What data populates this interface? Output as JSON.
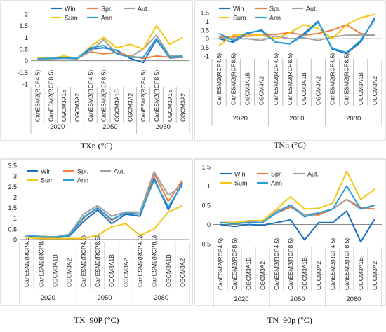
{
  "colors": {
    "Win": "#1f6fbf",
    "Spr.": "#f07b3f",
    "Aut.": "#a0a0a0",
    "Sum": "#f5c518",
    "Ann": "#2a9fd6"
  },
  "chart_data": [
    {
      "type": "line",
      "caption": "TXn (°C)",
      "yticks": [
        "2",
        "1.5",
        "1",
        "0.5",
        "0",
        "-0.5",
        "-1"
      ],
      "ylim": [
        -1,
        2
      ],
      "categories": [
        "CanESM2(RCP4.5)",
        "CanESM2(RCP8.5)",
        "CGCM3A1B",
        "CGCM3A2",
        "CanESM2(RCP4.5)",
        "CanESM2(RCP8.5)",
        "CGCM3A1B",
        "CGCM3A2",
        "CanESM2(RCP4.5)",
        "CanESM2(RCP8.5)",
        "CGCM3A1B",
        "CGCM3A2"
      ],
      "groups": [
        "2020",
        "2050",
        "2080"
      ],
      "legend": [
        [
          "Win",
          "Spr.",
          "Aut."
        ],
        [
          "Sum",
          "Ann"
        ]
      ],
      "series": [
        {
          "name": "Win",
          "values": [
            0.05,
            0.08,
            0.12,
            0.08,
            0.5,
            0.55,
            0.45,
            0.1,
            -0.08,
            0.9,
            0.12,
            0.15
          ]
        },
        {
          "name": "Spr.",
          "values": [
            0.1,
            0.1,
            0.15,
            0.1,
            0.38,
            0.3,
            0.35,
            0.2,
            0.1,
            0.2,
            0.15,
            0.15
          ]
        },
        {
          "name": "Aut.",
          "values": [
            0.08,
            0.08,
            0.1,
            0.08,
            0.4,
            0.9,
            0.3,
            0.15,
            0.5,
            1.1,
            0.2,
            0.2
          ]
        },
        {
          "name": "Sum",
          "values": [
            0.15,
            0.1,
            0.2,
            0.1,
            0.6,
            1.0,
            0.55,
            0.7,
            0.5,
            1.5,
            0.7,
            1.0
          ]
        },
        {
          "name": "Ann",
          "values": [
            0.08,
            0.1,
            0.12,
            0.1,
            0.55,
            0.65,
            0.3,
            0.15,
            0.15,
            0.95,
            0.15,
            0.2
          ]
        }
      ]
    },
    {
      "type": "line",
      "caption": "TNn (°C)",
      "yticks": [
        "1.5",
        "1",
        "0.5",
        "0",
        "-0.5",
        "-1"
      ],
      "ylim": [
        -1,
        1.5
      ],
      "categories": [
        "CanESM2(RCP4.5)",
        "CanESM2(RCP8.5)",
        "CGCM3A1B",
        "CGCM3A2",
        "CanESM2(RCP4.5)",
        "CanESM2(RCP8.5)",
        "CGCM3A1B",
        "CGCM3A2",
        "CanESM2(RCP4.5)",
        "CanESM2(RCP8.5)",
        "CGCM3A1B",
        "CGCM3A2"
      ],
      "groups": [
        "2020",
        "2050",
        "2080"
      ],
      "legend": [
        [
          "Win",
          "Spr.",
          "Aut."
        ],
        [
          "Sum",
          "Ann"
        ]
      ],
      "series": [
        {
          "name": "Win",
          "values": [
            0.0,
            -0.2,
            0.3,
            0.5,
            -0.2,
            -0.3,
            0.3,
            1.0,
            -0.6,
            -0.85,
            -0.2,
            1.2
          ]
        },
        {
          "name": "Spr.",
          "values": [
            0.1,
            0.1,
            0.15,
            0.2,
            0.25,
            0.35,
            0.2,
            0.3,
            0.5,
            0.8,
            0.3,
            0.2
          ]
        },
        {
          "name": "Aut.",
          "values": [
            0.05,
            0.0,
            0.0,
            -0.1,
            0.15,
            0.0,
            0.05,
            -0.1,
            0.1,
            0.2,
            0.2,
            0.2
          ]
        },
        {
          "name": "Sum",
          "values": [
            -0.4,
            0.2,
            0.25,
            0.2,
            0.0,
            0.35,
            0.8,
            0.6,
            0.0,
            0.8,
            1.2,
            1.4
          ]
        },
        {
          "name": "Ann",
          "values": [
            0.3,
            -0.1,
            0.35,
            0.45,
            -0.2,
            -0.3,
            0.2,
            0.95,
            -0.55,
            -0.8,
            -0.1,
            1.1
          ]
        }
      ]
    },
    {
      "type": "line",
      "caption": "TX_90P (°C)",
      "yticks": [
        "3.5",
        "3",
        "2.5",
        "2",
        "1.5",
        "1",
        "0.5",
        "0"
      ],
      "ylim": [
        0,
        3.5
      ],
      "categories": [
        "CanESM2(RCP4.5)",
        "CanESM2(RCP8.5)",
        "CGCM3A1B",
        "CGCM3A2",
        "CanESM2(RCP4.5)",
        "CanESM2(RCP8.5)",
        "CGCM3A1B",
        "CGCM3A2",
        "CanESM2(RCP4.5)",
        "CanESM2(RCP8.5)",
        "CGCM3A1B",
        "CGCM3A2"
      ],
      "groups": [
        "2020",
        "2050",
        "2080"
      ],
      "legend": [
        [
          "Win",
          "Spr.",
          "Aut."
        ],
        [
          "Sum",
          "Ann"
        ]
      ],
      "series": [
        {
          "name": "Win",
          "values": [
            0.18,
            0.12,
            0.1,
            0.15,
            0.85,
            1.4,
            0.75,
            1.2,
            1.1,
            2.9,
            1.4,
            2.7
          ]
        },
        {
          "name": "Spr.",
          "values": [
            0.2,
            0.15,
            0.12,
            0.2,
            1.0,
            1.5,
            0.9,
            1.3,
            1.2,
            3.1,
            1.8,
            2.8
          ]
        },
        {
          "name": "Aut.",
          "values": [
            0.2,
            0.15,
            0.12,
            0.25,
            1.2,
            1.6,
            1.1,
            1.3,
            1.3,
            3.2,
            2.1,
            2.5
          ]
        },
        {
          "name": "Sum",
          "values": [
            0.1,
            0.05,
            0.05,
            0.05,
            0.05,
            0.2,
            0.6,
            0.75,
            0.2,
            0.5,
            1.3,
            1.6
          ]
        },
        {
          "name": "Ann",
          "values": [
            0.2,
            0.12,
            0.12,
            0.18,
            1.05,
            1.5,
            0.95,
            1.25,
            1.2,
            2.8,
            1.55,
            2.6
          ]
        }
      ]
    },
    {
      "type": "line",
      "caption": "TN_90p (°C)",
      "yticks": [
        "1.5",
        "1",
        "0.5",
        "0",
        "-0.5"
      ],
      "ylim": [
        -0.5,
        1.5
      ],
      "categories": [
        "CanESM2(RCP4.5)",
        "CanESM2(RCP8.5)",
        "CGCM3A1B",
        "CGCM3A2",
        "CanESM2(RCP4.5)",
        "CanESM2(RCP8.5)",
        "CGCM3A1B",
        "CGCM3A2",
        "CanESM2(RCP4.5)",
        "CanESM2(RCP8.5)",
        "CGCM3A1B",
        "CGCM3A2"
      ],
      "groups": [
        "2020",
        "2050",
        "2080"
      ],
      "legend": [
        [
          "Win",
          "Spr.",
          "Aut."
        ],
        [
          "Sum",
          "Ann"
        ]
      ],
      "series": [
        {
          "name": "Win",
          "values": [
            0.0,
            -0.05,
            0.0,
            -0.02,
            0.05,
            0.12,
            -0.4,
            0.05,
            0.05,
            0.35,
            -0.45,
            0.15
          ]
        },
        {
          "name": "Spr.",
          "values": [
            0.05,
            0.05,
            0.05,
            0.05,
            0.3,
            0.45,
            0.25,
            0.25,
            0.4,
            0.65,
            0.45,
            0.4
          ]
        },
        {
          "name": "Aut.",
          "values": [
            0.05,
            0.05,
            0.08,
            0.05,
            0.35,
            0.5,
            0.25,
            0.3,
            0.4,
            0.65,
            0.4,
            0.5
          ]
        },
        {
          "name": "Sum",
          "values": [
            0.05,
            0.05,
            0.1,
            0.1,
            0.4,
            0.72,
            0.4,
            0.42,
            0.55,
            1.38,
            0.65,
            0.92
          ]
        },
        {
          "name": "Ann",
          "values": [
            0.05,
            0.02,
            0.05,
            0.05,
            0.3,
            0.5,
            0.2,
            0.3,
            0.4,
            1.0,
            0.4,
            0.5
          ]
        }
      ]
    }
  ]
}
